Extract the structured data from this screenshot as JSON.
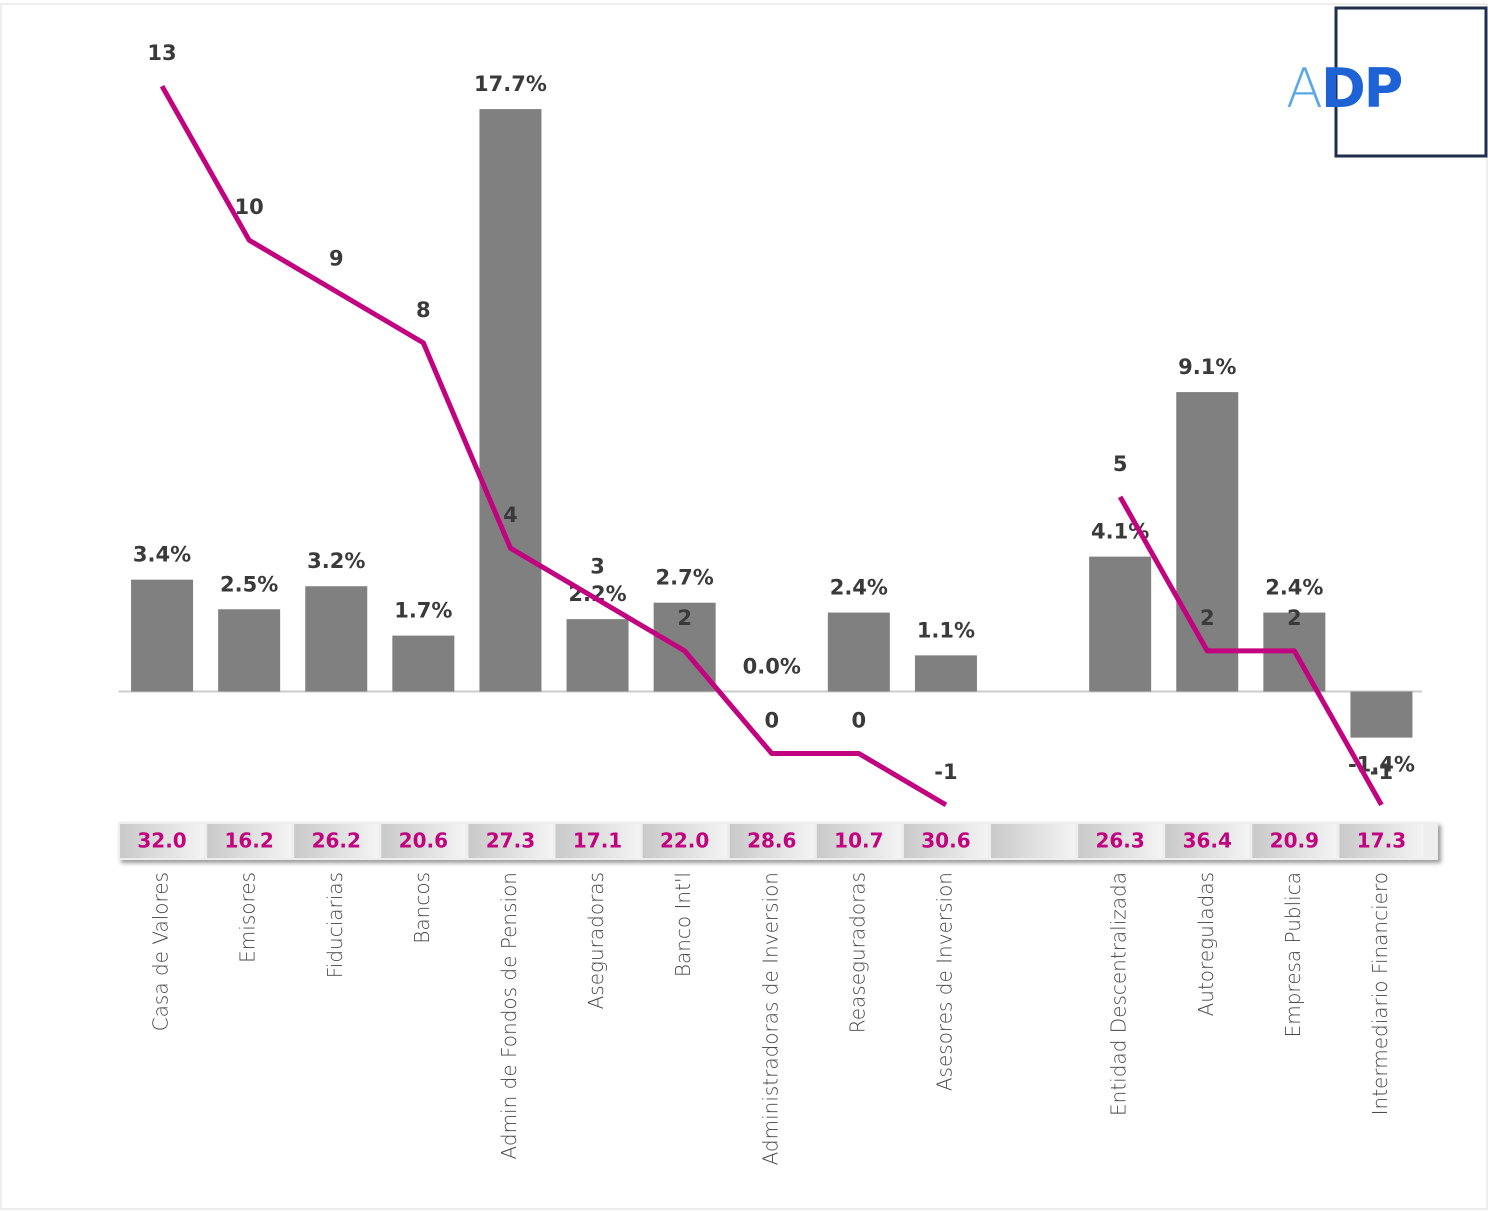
{
  "logo": "ADP",
  "chart_data": {
    "type": "bar",
    "categories": [
      "Casa de Valores",
      "Emisores",
      "Fiduciarias",
      "Bancos",
      "Admin de Fondos de Pension",
      "Aseguradoras",
      "Banco Int'l",
      "Administradoras de Inversion",
      "Reaseguradoras",
      "Asesores de Inversion",
      null,
      "Entidad Descentralizada",
      "Autoreguladas",
      "Empresa Publica",
      "Intermediario Financiero"
    ],
    "ylim": [
      -3.6,
      19.8
    ],
    "y2lim": [
      -1.1,
      13.9
    ],
    "series": [
      {
        "type": "bar",
        "color": "#808080",
        "values": [
          3.4,
          2.5,
          3.2,
          1.7,
          17.7,
          2.2,
          2.7,
          0.0,
          2.4,
          1.1,
          null,
          4.1,
          9.1,
          2.4,
          -1.4
        ],
        "value_labels": [
          "3.4%",
          "2.5%",
          "3.2%",
          "1.7%",
          "17.7%",
          "2.2%",
          "2.7%",
          "0.0%",
          "2.4%",
          "1.1%",
          null,
          "4.1%",
          "9.1%",
          "2.4%",
          "-1.4%"
        ]
      },
      {
        "type": "line",
        "axis": "y2",
        "color": "#c2037f",
        "values": [
          13,
          10,
          9,
          8,
          4,
          3,
          2,
          0,
          0,
          -1,
          null,
          5,
          2,
          2,
          -1
        ]
      }
    ],
    "table_row": {
      "color": "#c2037f",
      "values": [
        32.0,
        16.2,
        26.2,
        20.6,
        27.3,
        17.1,
        22.0,
        28.6,
        10.7,
        30.6,
        null,
        26.3,
        36.4,
        20.9,
        17.3
      ],
      "value_labels": [
        "32.0",
        "16.2",
        "26.2",
        "20.6",
        "27.3",
        "17.1",
        "22.0",
        "28.6",
        "10.7",
        "30.6",
        null,
        "26.3",
        "36.4",
        "20.9",
        "17.3"
      ]
    }
  }
}
